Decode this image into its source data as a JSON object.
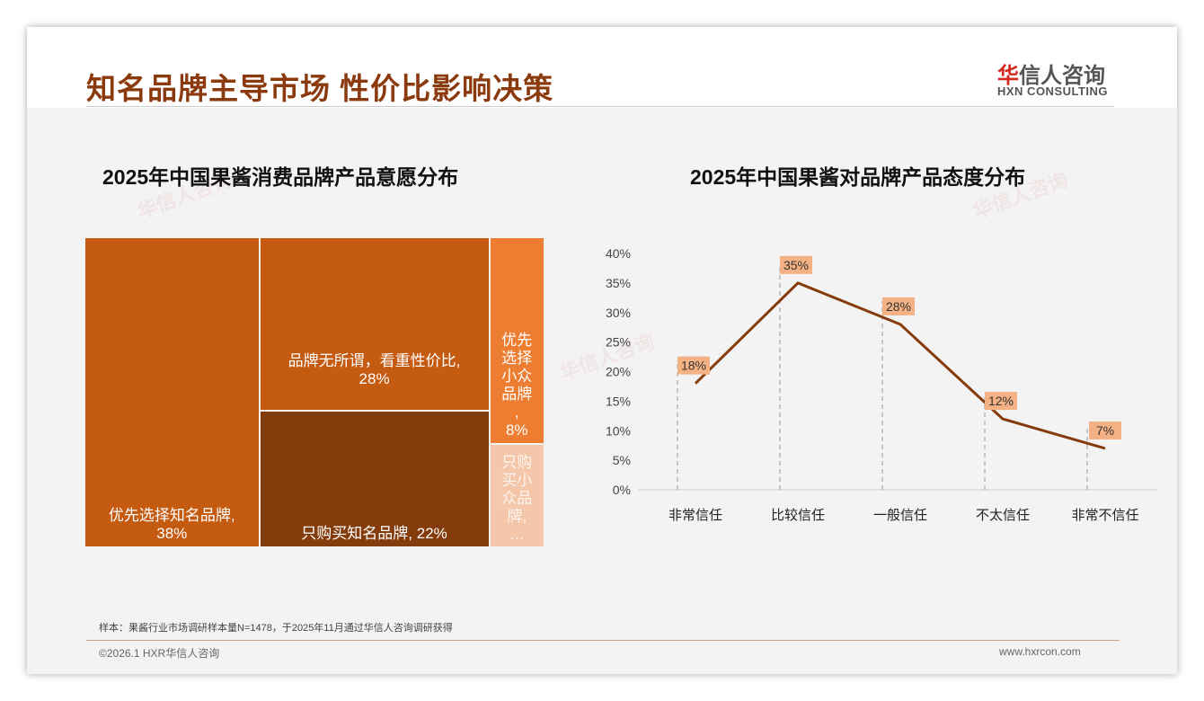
{
  "header": {
    "title": "知名品牌主导市场 性价比影响决策",
    "logo_cn_accent": "华",
    "logo_cn_rest": "信人咨询",
    "logo_en": "HXN CONSULTING"
  },
  "chart_data": [
    {
      "type": "treemap",
      "title": "2025年中国果酱消费品牌产品意愿分布",
      "items": [
        {
          "label": "优先选择知名品牌,",
          "value": 38,
          "display": "38%",
          "color": "#c55a11"
        },
        {
          "label": "品牌无所谓，看重性价比,",
          "value": 28,
          "display": "28%",
          "color": "#c55a11"
        },
        {
          "label": "只购买知名品牌,",
          "value": 22,
          "display": "22%",
          "color": "#843c0c"
        },
        {
          "label": "优先选择小众品牌,",
          "value": 8,
          "display": "8%",
          "color": "#ed7d31"
        },
        {
          "label": "只购买小众品牌,…",
          "value": 4,
          "display": "",
          "color": "#f4c7ab"
        }
      ]
    },
    {
      "type": "line",
      "title": "2025年中国果酱对品牌产品态度分布",
      "categories": [
        "非常信任",
        "比较信任",
        "一般信任",
        "不太信任",
        "非常不信任"
      ],
      "values": [
        18,
        35,
        28,
        12,
        7
      ],
      "labels": [
        "18%",
        "35%",
        "28%",
        "12%",
        "7%"
      ],
      "yticks": [
        "0%",
        "5%",
        "10%",
        "15%",
        "20%",
        "25%",
        "30%",
        "35%",
        "40%"
      ],
      "ylim": [
        0,
        40
      ],
      "color": "#843c0c",
      "label_bg": "#f4b183"
    }
  ],
  "footer": {
    "note": "样本：果酱行业市场调研样本量N=1478，于2025年11月通过华信人咨询调研获得",
    "copyright": "©2026.1 HXR华信人咨询",
    "website": "www.hxrcon.com"
  },
  "watermark": "华信人咨询"
}
